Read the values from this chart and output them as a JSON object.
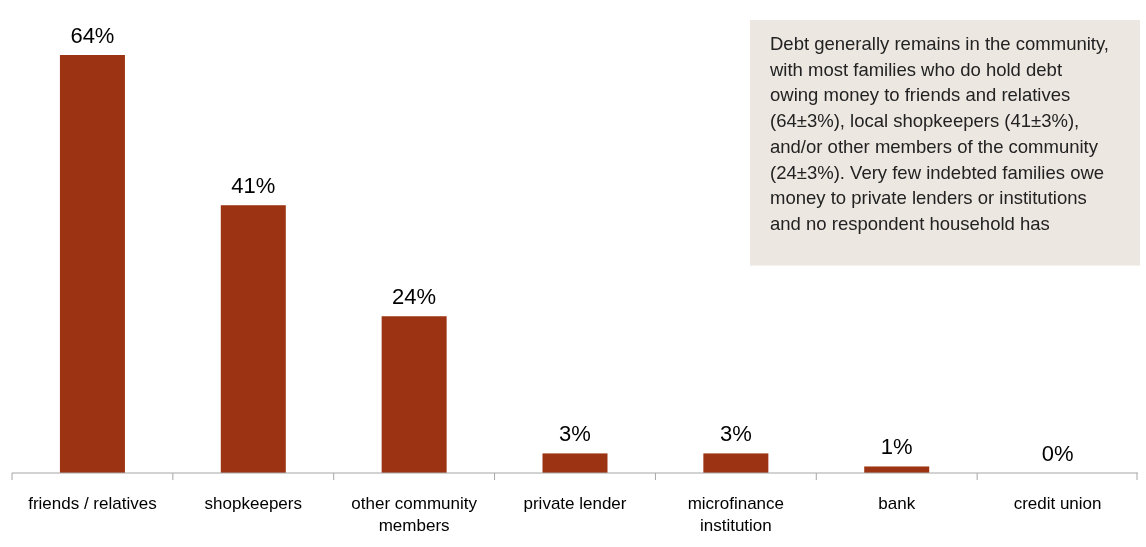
{
  "chart_data": {
    "type": "bar",
    "categories": [
      "friends / relatives",
      "shopkeepers",
      "other community members",
      "private lender",
      "microfinance institution",
      "bank",
      "credit union"
    ],
    "values": [
      64,
      41,
      24,
      3,
      3,
      1,
      0
    ],
    "value_labels": [
      "64%",
      "41%",
      "24%",
      "3%",
      "3%",
      "1%",
      "0%"
    ],
    "color": "#9c3413",
    "tick_labels": "x",
    "annotations": [
      "Debt generally remains in the community, with most families who do hold debt owing money to friends and relatives (64±3%), local shopkeepers (41±3%), and/or other members of the community (24±3%).  Very few indebted families owe money to private lenders or institutions and no respondent household has"
    ]
  }
}
